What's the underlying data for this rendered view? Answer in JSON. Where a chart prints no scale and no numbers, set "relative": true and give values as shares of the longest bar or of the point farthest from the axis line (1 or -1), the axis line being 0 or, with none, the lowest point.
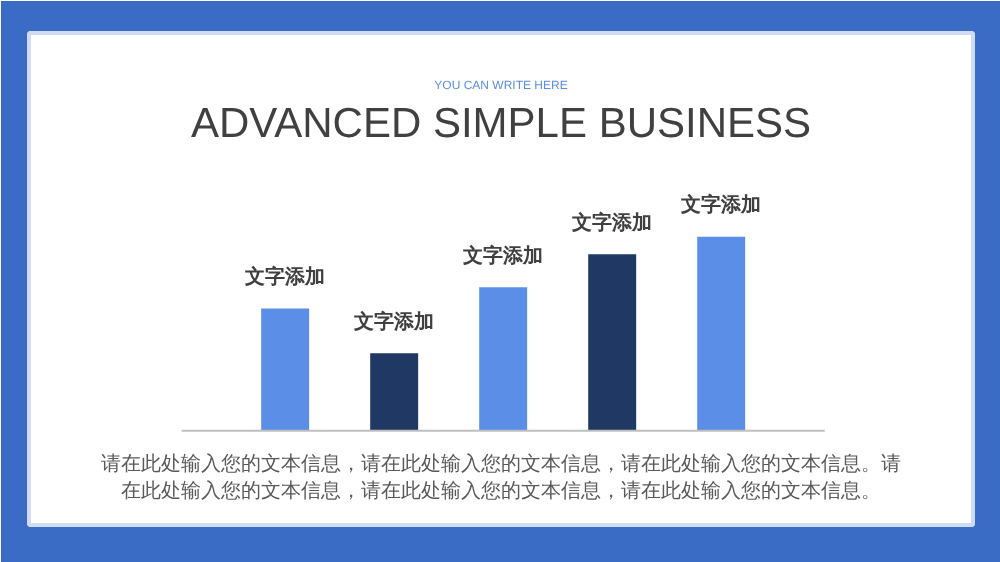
{
  "chart_data": {
    "type": "bar",
    "title": "ADVANCED SIMPLE BUSINESS",
    "subtitle": "YOU CAN WRITE HERE",
    "categories": [
      null,
      null,
      null,
      null,
      null
    ],
    "values": [
      0.63,
      0.4,
      0.74,
      0.91,
      1
    ],
    "colors": [
      "#5b8ee6",
      "#1f3864",
      "#5b8ee6",
      "#1f3864",
      "#5b8ee6"
    ],
    "relative": true,
    "annotations": [
      "请在此处输入您的文本信息，请在此处输入您的文本信息，请在此处输入您的文本信息。请在此处输入您的文本信息，请在此处输入您的文本信息，请在此处输入您的文本信息。",
      "文字添加",
      "文字添加",
      "文字添加",
      "文字添加",
      "文字添加"
    ]
  }
}
